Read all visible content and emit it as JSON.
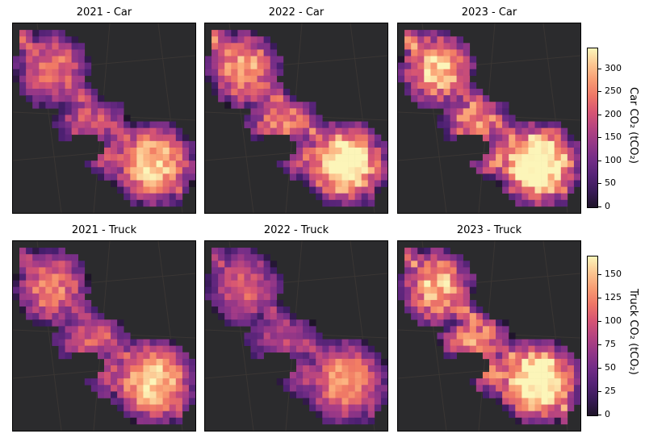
{
  "rows": [
    {
      "mode": "Car",
      "panels": [
        {
          "title": "2021 - Car",
          "intensity": 0.82
        },
        {
          "title": "2022 - Car",
          "intensity": 0.95
        },
        {
          "title": "2023 - Car",
          "intensity": 1.05
        }
      ],
      "colorbar": {
        "label": "Car CO₂ (tCO₂)",
        "ticks": [
          "0",
          "50",
          "100",
          "150",
          "200",
          "250",
          "300"
        ],
        "tick_values": [
          0,
          50,
          100,
          150,
          200,
          250,
          300
        ],
        "max": 345
      }
    },
    {
      "mode": "Truck",
      "panels": [
        {
          "title": "2021 - Truck",
          "intensity": 0.85
        },
        {
          "title": "2022 - Truck",
          "intensity": 0.72
        },
        {
          "title": "2023 - Truck",
          "intensity": 1.02
        }
      ],
      "colorbar": {
        "label": "Truck CO₂ (tCO₂)",
        "ticks": [
          "0",
          "25",
          "50",
          "75",
          "100",
          "125",
          "150"
        ],
        "tick_values": [
          0,
          25,
          50,
          75,
          100,
          125,
          150
        ],
        "max": 170
      }
    }
  ],
  "colormap": "magma",
  "basemap": "dark"
}
